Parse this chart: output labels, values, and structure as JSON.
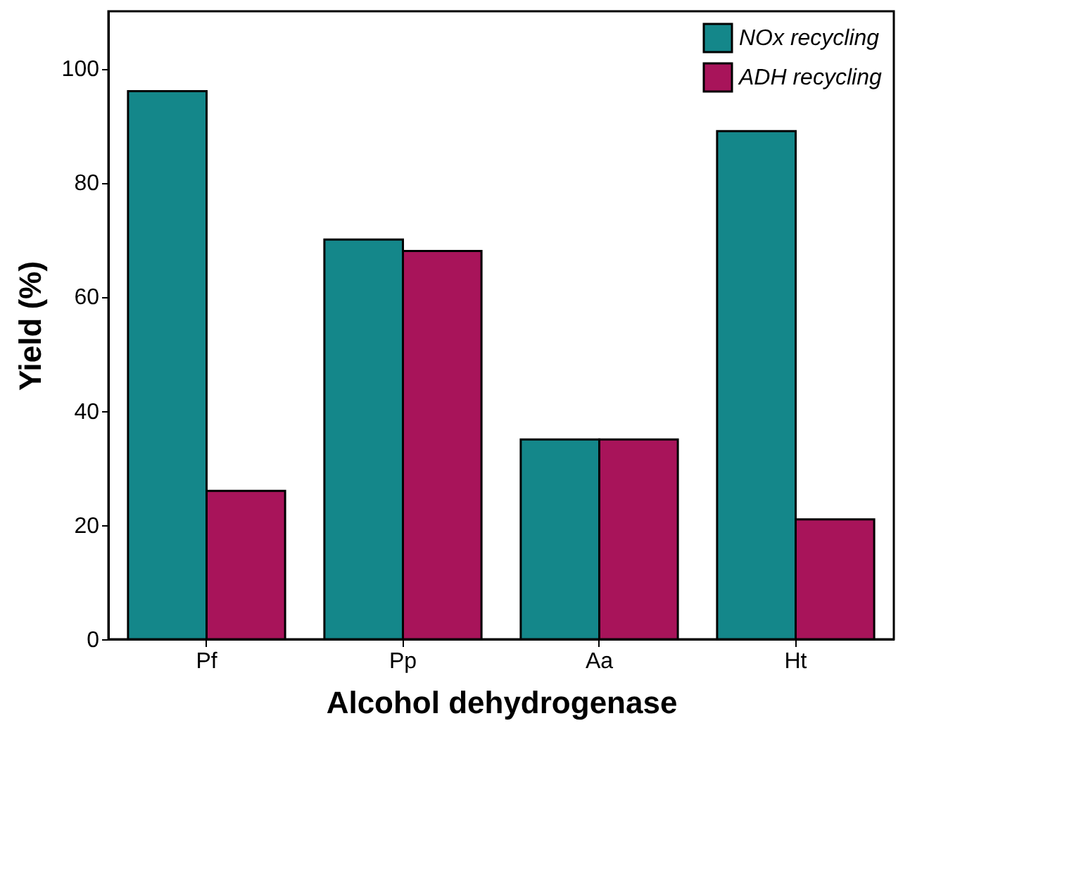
{
  "chart_data": {
    "type": "bar",
    "xlabel": "Alcohol dehydrogenase",
    "ylabel": "Yield (%)",
    "categories": [
      "Pf",
      "Pp",
      "Aa",
      "Ht"
    ],
    "series": [
      {
        "name": "NOx recycling",
        "color": "#14878a",
        "values": [
          96,
          70,
          35,
          89
        ]
      },
      {
        "name": "ADH recycling",
        "color": "#a8145a",
        "values": [
          26,
          68,
          35,
          21
        ]
      }
    ],
    "ylim": [
      0,
      110
    ],
    "yticks": [
      0,
      20,
      40,
      60,
      80,
      100
    ],
    "grid": false,
    "legend": "top right"
  }
}
